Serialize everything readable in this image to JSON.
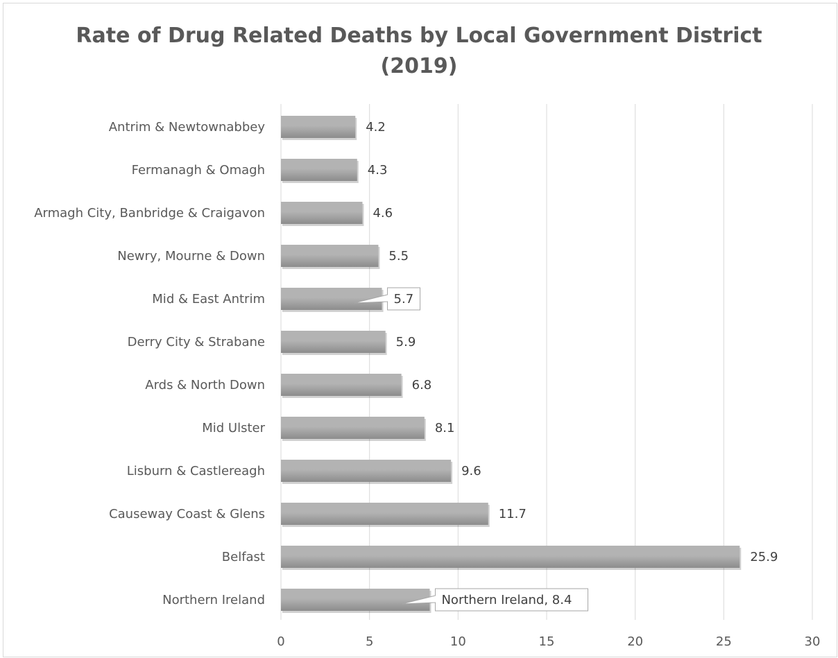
{
  "chart_data": {
    "type": "bar",
    "orientation": "horizontal",
    "title": "Rate of Drug Related Deaths by Local Government District (2019)",
    "title_lines": [
      "Rate of Drug Related Deaths by Local Government District",
      "(2019)"
    ],
    "categories": [
      "Antrim & Newtownabbey",
      "Fermanagh & Omagh",
      "Armagh City, Banbridge & Craigavon",
      "Newry, Mourne & Down",
      "Mid & East Antrim",
      "Derry City & Strabane",
      "Ards & North Down",
      "Mid Ulster",
      "Lisburn & Castlereagh",
      "Causeway Coast & Glens",
      "Belfast",
      "Northern Ireland"
    ],
    "values": [
      4.2,
      4.3,
      4.6,
      5.5,
      5.7,
      5.9,
      6.8,
      8.1,
      9.6,
      11.7,
      25.9,
      8.4
    ],
    "data_labels": [
      "4.2",
      "4.3",
      "4.6",
      "5.5",
      "5.7",
      "5.9",
      "6.8",
      "8.1",
      "9.6",
      "11.7",
      "25.9",
      "Northern Ireland, 8.4"
    ],
    "callout_labels": [
      4,
      11
    ],
    "xlim": [
      0,
      30
    ],
    "xticks": [
      "0",
      "5",
      "10",
      "15",
      "20",
      "25",
      "30"
    ],
    "xtick_values": [
      0,
      5,
      10,
      15,
      20,
      25,
      30
    ],
    "xlabel": "",
    "ylabel": "",
    "grid": "vertical",
    "legend": "none",
    "colors": {
      "bar_light": "#b3b3b3",
      "bar_dark": "#8c8c8c",
      "grid": "#d9d9d9",
      "text": "#595959",
      "callout_border": "#a6a6a6"
    }
  }
}
